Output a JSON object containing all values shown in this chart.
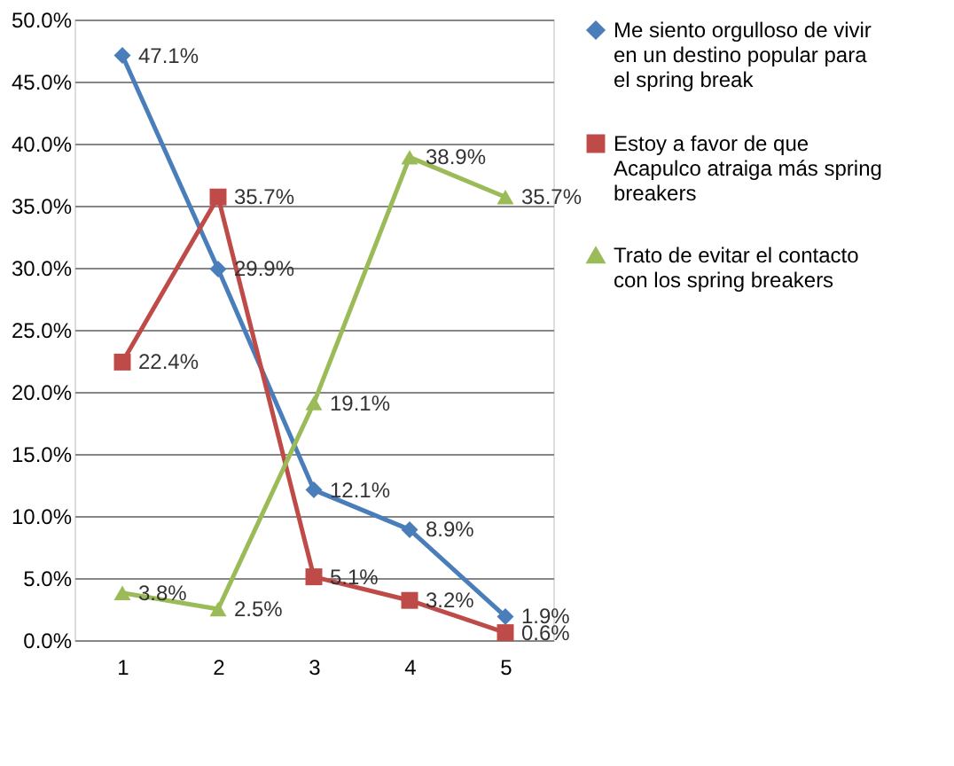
{
  "chart_data": {
    "type": "line",
    "categories": [
      "1",
      "2",
      "3",
      "4",
      "5"
    ],
    "series": [
      {
        "name": "Me siento orgulloso de vivir en un destino popular para el spring break",
        "color": "#4a7ebb",
        "marker": "diamond",
        "values": [
          47.1,
          29.9,
          12.1,
          8.9,
          1.9
        ],
        "value_labels": [
          "47.1%",
          "29.9%",
          "12.1%",
          "8.9%",
          "1.9%"
        ]
      },
      {
        "name": "Estoy a favor de que Acapulco atraiga más spring breakers",
        "color": "#be4b48",
        "marker": "square",
        "values": [
          22.4,
          35.7,
          5.1,
          3.2,
          0.6
        ],
        "value_labels": [
          "22.4%",
          "35.7%",
          "5.1%",
          "3.2%",
          "0.6%"
        ]
      },
      {
        "name": "Trato de evitar el contacto con los spring breakers",
        "color": "#9bbb59",
        "marker": "triangle",
        "values": [
          3.8,
          2.5,
          19.1,
          38.9,
          35.7
        ],
        "value_labels": [
          "3.8%",
          "2.5%",
          "19.1%",
          "38.9%",
          "35.7%"
        ]
      }
    ],
    "ylim": [
      0,
      50
    ],
    "yticks": [
      {
        "value": 0,
        "label": "0.0%"
      },
      {
        "value": 5,
        "label": "5.0%"
      },
      {
        "value": 10,
        "label": "10.0%"
      },
      {
        "value": 15,
        "label": "15.0%"
      },
      {
        "value": 20,
        "label": "20.0%"
      },
      {
        "value": 25,
        "label": "25.0%"
      },
      {
        "value": 30,
        "label": "30.0%"
      },
      {
        "value": 35,
        "label": "35.0%"
      },
      {
        "value": 40,
        "label": "40.0%"
      },
      {
        "value": 45,
        "label": "45.0%"
      },
      {
        "value": 50,
        "label": "50.0%"
      }
    ],
    "grid": "y",
    "legend": "right",
    "line_style": "solid"
  }
}
